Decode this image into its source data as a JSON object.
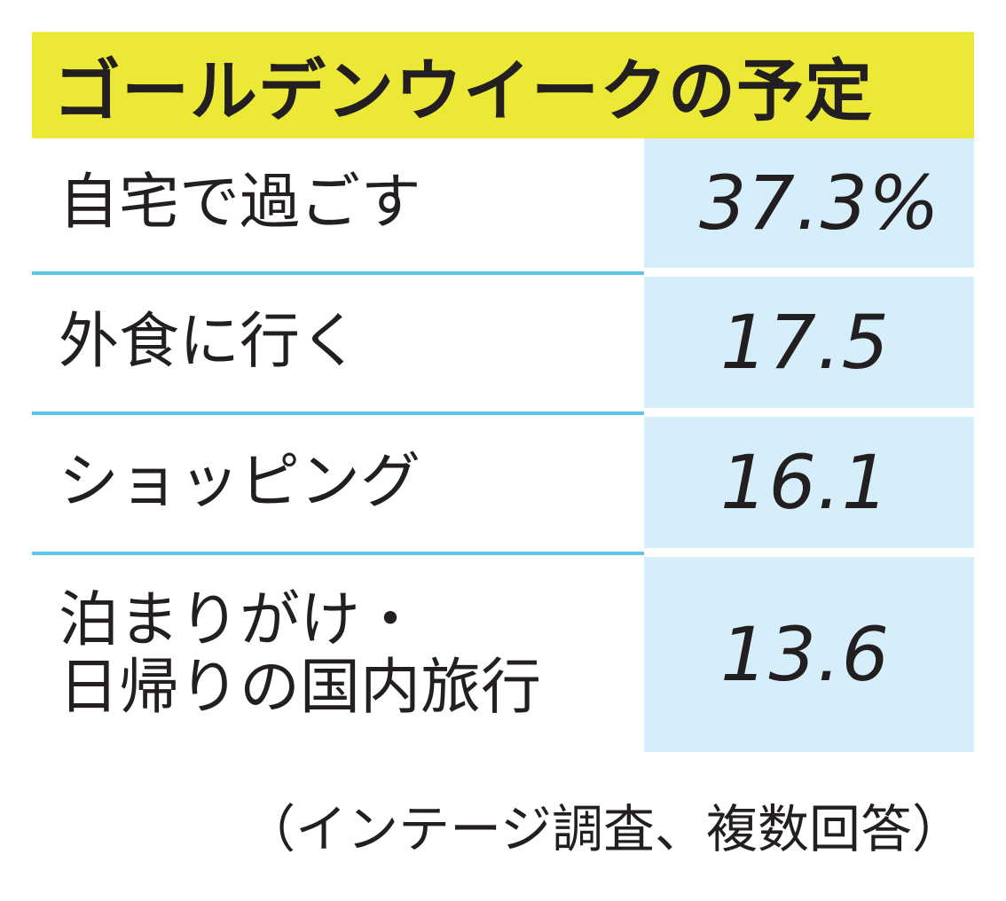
{
  "chart_data": {
    "type": "table",
    "title": "ゴールデンウイークの予定",
    "rows": [
      {
        "label": "自宅で過ごす",
        "display": "37.3%",
        "value": 37.3
      },
      {
        "label": "外食に行く",
        "display": "17.5",
        "value": 17.5
      },
      {
        "label": "ショッピング",
        "display": "16.1",
        "value": 16.1
      },
      {
        "label": "泊まりがけ・\n日帰りの国内旅行",
        "display": "13.6",
        "value": 13.6
      }
    ],
    "unit": "%",
    "source_note": "（インテージ調査、複数回答）"
  },
  "colors": {
    "title_bg": "#ece936",
    "value_bg": "#d6eef9",
    "divider": "#5cc6e8",
    "text": "#231f20"
  }
}
